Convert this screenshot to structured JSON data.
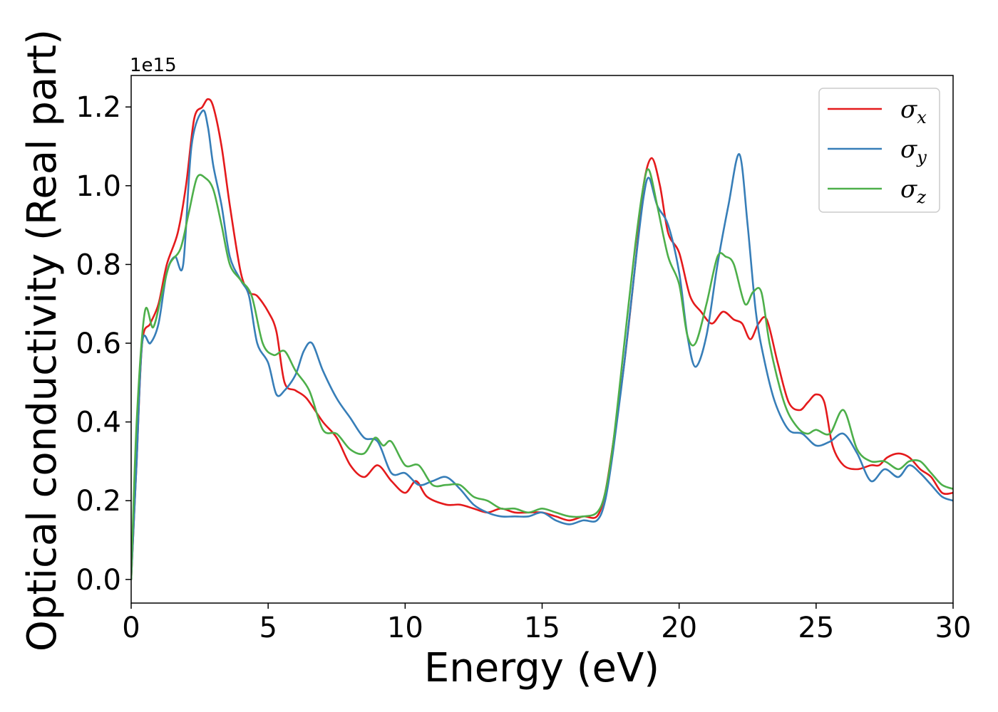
{
  "chart_data": {
    "type": "line",
    "xlabel": "Energy (eV)",
    "ylabel": "Optical conductivity (Real part)",
    "y_offset_text": "1e15",
    "xlim": [
      0,
      30
    ],
    "ylim": [
      -0.06,
      1.28
    ],
    "y_scale_factor": 1000000000000000.0,
    "x_ticks": [
      0,
      5,
      10,
      15,
      20,
      25,
      30
    ],
    "x_tick_labels": [
      "0",
      "5",
      "10",
      "15",
      "20",
      "25",
      "30"
    ],
    "y_ticks": [
      0.0,
      0.2,
      0.4,
      0.6,
      0.8,
      1.0,
      1.2
    ],
    "y_tick_labels": [
      "0.0",
      "0.2",
      "0.4",
      "0.6",
      "0.8",
      "1.0",
      "1.2"
    ],
    "grid": false,
    "legend_position": "top-right",
    "series": [
      {
        "name": "σx",
        "symbol": "σ",
        "subscript": "x",
        "color": "#e41a1c",
        "x": [
          0,
          0.2,
          0.4,
          0.7,
          1.0,
          1.3,
          1.7,
          2.0,
          2.3,
          2.6,
          2.8,
          3.0,
          3.3,
          3.6,
          4.0,
          4.3,
          4.6,
          5.0,
          5.3,
          5.6,
          6.0,
          6.4,
          7.0,
          7.5,
          8.0,
          8.5,
          9.0,
          9.5,
          10.0,
          10.4,
          10.8,
          11.5,
          12.0,
          12.5,
          13.0,
          13.5,
          14.0,
          14.5,
          15.0,
          15.5,
          16.0,
          16.5,
          17.0,
          17.3,
          17.6,
          18.0,
          18.4,
          18.7,
          19.0,
          19.3,
          19.6,
          20.0,
          20.4,
          20.8,
          21.2,
          21.6,
          22.0,
          22.3,
          22.6,
          22.9,
          23.2,
          23.6,
          24.0,
          24.4,
          24.7,
          25.0,
          25.3,
          25.6,
          26.0,
          26.5,
          27.0,
          27.3,
          27.6,
          28.0,
          28.4,
          28.8,
          29.2,
          29.6,
          30.0
        ],
        "y": [
          0.0,
          0.3,
          0.6,
          0.65,
          0.7,
          0.8,
          0.88,
          1.0,
          1.17,
          1.2,
          1.22,
          1.2,
          1.1,
          0.95,
          0.78,
          0.73,
          0.72,
          0.68,
          0.63,
          0.5,
          0.48,
          0.46,
          0.4,
          0.36,
          0.29,
          0.26,
          0.29,
          0.25,
          0.22,
          0.25,
          0.21,
          0.19,
          0.19,
          0.18,
          0.17,
          0.18,
          0.17,
          0.17,
          0.17,
          0.16,
          0.15,
          0.16,
          0.16,
          0.22,
          0.35,
          0.55,
          0.8,
          1.0,
          1.07,
          1.0,
          0.88,
          0.83,
          0.72,
          0.68,
          0.65,
          0.68,
          0.66,
          0.65,
          0.61,
          0.65,
          0.66,
          0.55,
          0.45,
          0.43,
          0.45,
          0.47,
          0.45,
          0.34,
          0.29,
          0.28,
          0.29,
          0.29,
          0.31,
          0.32,
          0.31,
          0.28,
          0.26,
          0.22,
          0.22
        ]
      },
      {
        "name": "σy",
        "symbol": "σ",
        "subscript": "y",
        "color": "#377eb8",
        "x": [
          0,
          0.2,
          0.4,
          0.7,
          1.0,
          1.3,
          1.6,
          1.9,
          2.2,
          2.6,
          2.8,
          3.0,
          3.3,
          3.6,
          4.0,
          4.3,
          4.6,
          5.0,
          5.3,
          5.6,
          6.0,
          6.3,
          6.6,
          7.0,
          7.5,
          8.0,
          8.5,
          9.0,
          9.5,
          10.0,
          10.5,
          11.0,
          11.5,
          12.0,
          12.5,
          13.0,
          13.5,
          14.0,
          14.5,
          15.0,
          15.5,
          16.0,
          16.5,
          17.0,
          17.3,
          17.6,
          18.0,
          18.4,
          18.7,
          18.9,
          19.2,
          19.6,
          20.0,
          20.3,
          20.6,
          21.0,
          21.4,
          21.8,
          22.2,
          22.5,
          22.8,
          23.1,
          23.5,
          24.0,
          24.5,
          25.0,
          25.5,
          26.0,
          26.5,
          27.0,
          27.5,
          28.0,
          28.4,
          28.8,
          29.2,
          29.6,
          30.0
        ],
        "y": [
          0.0,
          0.3,
          0.6,
          0.6,
          0.65,
          0.78,
          0.82,
          0.8,
          1.1,
          1.19,
          1.15,
          1.05,
          0.95,
          0.82,
          0.76,
          0.72,
          0.6,
          0.55,
          0.47,
          0.48,
          0.52,
          0.58,
          0.6,
          0.53,
          0.46,
          0.41,
          0.36,
          0.35,
          0.27,
          0.27,
          0.24,
          0.25,
          0.26,
          0.23,
          0.19,
          0.17,
          0.16,
          0.16,
          0.16,
          0.17,
          0.15,
          0.14,
          0.15,
          0.15,
          0.2,
          0.33,
          0.55,
          0.8,
          0.97,
          1.02,
          0.95,
          0.9,
          0.78,
          0.62,
          0.54,
          0.62,
          0.8,
          0.95,
          1.08,
          0.9,
          0.68,
          0.56,
          0.45,
          0.38,
          0.37,
          0.34,
          0.35,
          0.37,
          0.32,
          0.25,
          0.28,
          0.26,
          0.29,
          0.27,
          0.24,
          0.21,
          0.2
        ]
      },
      {
        "name": "σz",
        "symbol": "σ",
        "subscript": "z",
        "color": "#4daf4a",
        "x": [
          0,
          0.2,
          0.5,
          0.8,
          1.1,
          1.4,
          1.8,
          2.1,
          2.4,
          2.7,
          3.0,
          3.3,
          3.6,
          4.0,
          4.4,
          4.8,
          5.2,
          5.6,
          6.0,
          6.5,
          7.0,
          7.5,
          8.0,
          8.5,
          8.9,
          9.2,
          9.5,
          10.0,
          10.5,
          11.0,
          11.5,
          12.0,
          12.5,
          13.0,
          13.5,
          14.0,
          14.5,
          15.0,
          15.5,
          16.0,
          16.5,
          17.0,
          17.3,
          17.6,
          18.0,
          18.4,
          18.7,
          18.9,
          19.2,
          19.6,
          20.0,
          20.3,
          20.6,
          21.0,
          21.4,
          21.7,
          22.0,
          22.4,
          22.7,
          23.0,
          23.3,
          23.7,
          24.0,
          24.4,
          24.7,
          25.0,
          25.5,
          26.0,
          26.5,
          27.0,
          27.5,
          28.0,
          28.4,
          28.8,
          29.2,
          29.6,
          30.0
        ],
        "y": [
          0.0,
          0.4,
          0.68,
          0.64,
          0.72,
          0.8,
          0.84,
          0.93,
          1.02,
          1.02,
          0.99,
          0.9,
          0.8,
          0.76,
          0.72,
          0.6,
          0.57,
          0.58,
          0.53,
          0.48,
          0.38,
          0.37,
          0.33,
          0.32,
          0.36,
          0.34,
          0.35,
          0.29,
          0.29,
          0.24,
          0.24,
          0.24,
          0.21,
          0.2,
          0.18,
          0.18,
          0.17,
          0.18,
          0.17,
          0.16,
          0.16,
          0.17,
          0.22,
          0.35,
          0.6,
          0.85,
          1.0,
          1.04,
          0.95,
          0.82,
          0.75,
          0.62,
          0.6,
          0.7,
          0.82,
          0.82,
          0.8,
          0.7,
          0.73,
          0.73,
          0.6,
          0.48,
          0.42,
          0.38,
          0.37,
          0.38,
          0.37,
          0.43,
          0.33,
          0.3,
          0.3,
          0.28,
          0.3,
          0.3,
          0.27,
          0.24,
          0.23
        ]
      }
    ]
  }
}
